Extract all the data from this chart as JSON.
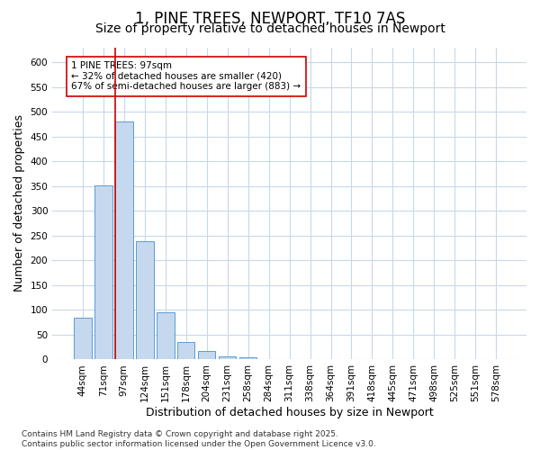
{
  "title": "1, PINE TREES, NEWPORT, TF10 7AS",
  "subtitle": "Size of property relative to detached houses in Newport",
  "xlabel": "Distribution of detached houses by size in Newport",
  "ylabel": "Number of detached properties",
  "categories": [
    "44sqm",
    "71sqm",
    "97sqm",
    "124sqm",
    "151sqm",
    "178sqm",
    "204sqm",
    "231sqm",
    "258sqm",
    "284sqm",
    "311sqm",
    "338sqm",
    "364sqm",
    "391sqm",
    "418sqm",
    "445sqm",
    "471sqm",
    "498sqm",
    "525sqm",
    "551sqm",
    "578sqm"
  ],
  "values": [
    85,
    352,
    480,
    238,
    96,
    35,
    17,
    7,
    5,
    1,
    1,
    0,
    0,
    0,
    0,
    0,
    0,
    0,
    0,
    0,
    0
  ],
  "bar_color": "#c5d8ed",
  "bar_edge_color": "#5b9bd5",
  "highlight_index": 2,
  "highlight_color": "#cc0000",
  "ylim": [
    0,
    630
  ],
  "yticks": [
    0,
    50,
    100,
    150,
    200,
    250,
    300,
    350,
    400,
    450,
    500,
    550,
    600
  ],
  "annotation_text": "1 PINE TREES: 97sqm\n← 32% of detached houses are smaller (420)\n67% of semi-detached houses are larger (883) →",
  "footnote": "Contains HM Land Registry data © Crown copyright and database right 2025.\nContains public sector information licensed under the Open Government Licence v3.0.",
  "bg_color": "#ffffff",
  "grid_color": "#c8d8e8",
  "title_fontsize": 12,
  "subtitle_fontsize": 10,
  "axis_label_fontsize": 9,
  "tick_fontsize": 7.5,
  "annotation_fontsize": 7.5,
  "footnote_fontsize": 6.5
}
